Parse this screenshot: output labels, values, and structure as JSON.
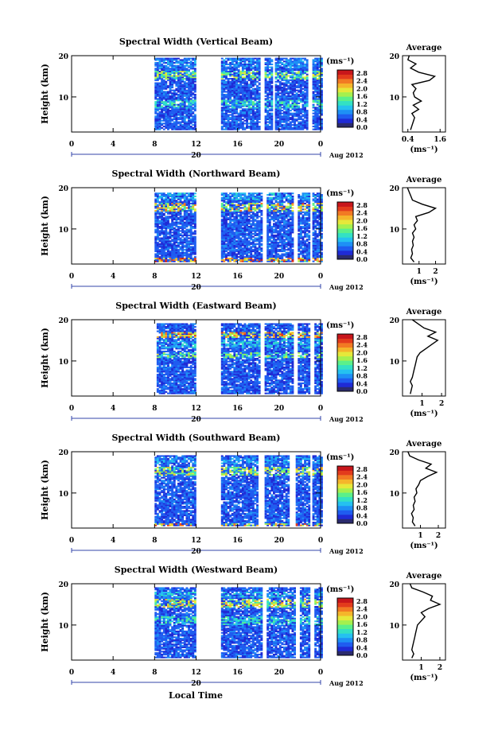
{
  "figure": {
    "xlabel": "Local Time",
    "date_label": "Aug 2012",
    "day_label": "20",
    "colorbar_unit": "(ms⁻¹)",
    "profile_title": "Average",
    "ylabel": "Height (km)"
  },
  "colormap": [
    "#2b2b6e",
    "#1f2bd6",
    "#1f5cf0",
    "#1e90f5",
    "#25c1f0",
    "#33e1c4",
    "#5bf08a",
    "#a6f04e",
    "#e6e83a",
    "#f5b52b",
    "#f27a23",
    "#e33b1c",
    "#c8161b"
  ],
  "chart_data": [
    {
      "type": "heatmap",
      "title": "Spectral Width (Vertical Beam)",
      "xlabel": "Local Time",
      "ylabel": "Height (km)",
      "x_ticks": [
        "0",
        "4",
        "8",
        "12",
        "16",
        "20",
        "0"
      ],
      "x_range": [
        0,
        24
      ],
      "y_ticks": [
        "20",
        "10"
      ],
      "y_range": [
        1.5,
        20
      ],
      "colorbar_ticks": [
        "2.8",
        "2.4",
        "2.0",
        "1.6",
        "1.2",
        "0.8",
        "0.4",
        "0.0"
      ],
      "data_gaps_hours": [
        [
          0,
          8
        ],
        [
          12,
          14.3
        ],
        [
          18.2,
          18.6
        ],
        [
          19.3,
          19.6
        ],
        [
          22.8,
          23.1
        ]
      ],
      "bands": [
        {
          "h": [
            14,
            16
          ],
          "v": 1.7
        },
        {
          "h": [
            7,
            9
          ],
          "v": 1.3
        },
        {
          "h": [
            17,
            19
          ],
          "v": 0.9
        }
      ],
      "top_km": 19.5,
      "profile": {
        "xlabel": "(ms⁻¹)",
        "x_ticks": [
          "0.4",
          "1.6"
        ],
        "x_range": [
          0.2,
          1.8
        ],
        "y_ticks": [
          "20",
          "10"
        ],
        "heights": [
          2,
          3,
          4,
          5,
          6,
          7,
          8,
          9,
          10,
          11,
          12,
          13,
          14,
          15,
          16,
          17,
          18,
          19,
          20
        ],
        "values": [
          0.5,
          0.55,
          0.6,
          0.65,
          0.55,
          0.8,
          0.6,
          0.9,
          0.65,
          0.6,
          0.7,
          0.55,
          1.2,
          1.4,
          0.8,
          0.5,
          0.7,
          0.4,
          0.45
        ]
      }
    },
    {
      "type": "heatmap",
      "title": "Spectral Width (Northward Beam)",
      "xlabel": "Local Time",
      "ylabel": "Height (km)",
      "x_ticks": [
        "0",
        "4",
        "8",
        "12",
        "16",
        "20",
        "0"
      ],
      "x_range": [
        0,
        24
      ],
      "y_ticks": [
        "20",
        "10"
      ],
      "y_range": [
        1.5,
        20
      ],
      "colorbar_ticks": [
        "2.8",
        "2.4",
        "2.0",
        "1.6",
        "1.2",
        "0.8",
        "0.4",
        "0.0"
      ],
      "data_gaps_hours": [
        [
          0,
          8
        ],
        [
          12,
          14.4
        ],
        [
          18.4,
          18.8
        ],
        [
          21.3,
          21.7
        ],
        [
          23.0,
          23.2
        ]
      ],
      "bands": [
        {
          "h": [
            14,
            16
          ],
          "v": 2.2
        },
        {
          "h": [
            2,
            3
          ],
          "v": 2.6
        },
        {
          "h": [
            17,
            18.5
          ],
          "v": 1.0
        }
      ],
      "top_km": 18.5,
      "profile": {
        "xlabel": "(ms⁻¹)",
        "x_ticks": [
          "1",
          "2"
        ],
        "x_range": [
          0,
          2.6
        ],
        "y_ticks": [
          "20",
          "10"
        ],
        "heights": [
          2,
          3,
          4,
          5,
          6,
          7,
          8,
          9,
          10,
          11,
          12,
          13,
          14,
          15,
          16,
          17,
          18,
          19,
          20
        ],
        "values": [
          0.7,
          0.5,
          0.6,
          0.55,
          0.65,
          0.6,
          0.7,
          0.6,
          0.8,
          0.7,
          0.9,
          0.8,
          1.6,
          2.0,
          1.2,
          0.6,
          0.5,
          0.4,
          0.3
        ]
      }
    },
    {
      "type": "heatmap",
      "title": "Spectral Width (Eastward Beam)",
      "xlabel": "Local Time",
      "ylabel": "Height (km)",
      "x_ticks": [
        "0",
        "4",
        "8",
        "12",
        "16",
        "20",
        "0"
      ],
      "x_range": [
        0,
        24
      ],
      "y_ticks": [
        "20",
        "10"
      ],
      "y_range": [
        1.5,
        20
      ],
      "colorbar_ticks": [
        "2.8",
        "2.4",
        "2.0",
        "1.6",
        "1.2",
        "0.8",
        "0.4",
        "0.0"
      ],
      "data_gaps_hours": [
        [
          0,
          8.3
        ],
        [
          12,
          14.3
        ],
        [
          18.2,
          18.6
        ],
        [
          21.4,
          21.8
        ],
        [
          23.0,
          23.3
        ]
      ],
      "bands": [
        {
          "h": [
            15.5,
            17
          ],
          "v": 2.4
        },
        {
          "h": [
            10.5,
            12
          ],
          "v": 1.6
        },
        {
          "h": [
            13,
            15
          ],
          "v": 1.1
        }
      ],
      "top_km": 19,
      "profile": {
        "xlabel": "(ms⁻¹)",
        "x_ticks": [
          "1",
          "2"
        ],
        "x_range": [
          0,
          2.2
        ],
        "y_ticks": [
          "20",
          "10"
        ],
        "heights": [
          2,
          3,
          4,
          5,
          6,
          7,
          8,
          9,
          10,
          11,
          12,
          13,
          14,
          15,
          16,
          17,
          18,
          19,
          20
        ],
        "values": [
          0.4,
          0.45,
          0.5,
          0.4,
          0.5,
          0.55,
          0.6,
          0.65,
          0.7,
          0.75,
          0.9,
          1.2,
          1.5,
          1.8,
          1.3,
          1.7,
          1.1,
          0.8,
          0.5
        ]
      }
    },
    {
      "type": "heatmap",
      "title": "Spectral Width (Southward Beam)",
      "xlabel": "Local Time",
      "ylabel": "Height (km)",
      "x_ticks": [
        "0",
        "4",
        "8",
        "12",
        "16",
        "20",
        "0"
      ],
      "x_range": [
        0,
        24
      ],
      "y_ticks": [
        "20",
        "10"
      ],
      "y_range": [
        1.5,
        20
      ],
      "colorbar_ticks": [
        "2.8",
        "2.4",
        "2.0",
        "1.6",
        "1.2",
        "0.8",
        "0.4",
        "0.0"
      ],
      "data_gaps_hours": [
        [
          0,
          8
        ],
        [
          12,
          14.3
        ],
        [
          18.0,
          18.5
        ],
        [
          21.0,
          21.5
        ],
        [
          23.0,
          23.2
        ]
      ],
      "bands": [
        {
          "h": [
            14,
            16
          ],
          "v": 1.9
        },
        {
          "h": [
            1.5,
            2.5
          ],
          "v": 2.3
        },
        {
          "h": [
            17,
            18.5
          ],
          "v": 0.9
        }
      ],
      "top_km": 19,
      "profile": {
        "xlabel": "(ms⁻¹)",
        "x_ticks": [
          "1",
          "2"
        ],
        "x_range": [
          0,
          2.4
        ],
        "y_ticks": [
          "20",
          "10"
        ],
        "heights": [
          2,
          3,
          4,
          5,
          6,
          7,
          8,
          9,
          10,
          11,
          12,
          13,
          14,
          15,
          16,
          17,
          18,
          19,
          20
        ],
        "values": [
          0.7,
          0.55,
          0.6,
          0.5,
          0.65,
          0.6,
          0.7,
          0.65,
          0.8,
          0.75,
          0.9,
          1.0,
          1.4,
          1.9,
          1.3,
          1.6,
          0.9,
          0.4,
          0.3
        ]
      }
    },
    {
      "type": "heatmap",
      "title": "Spectral Width (Westward Beam)",
      "xlabel": "Local Time",
      "ylabel": "Height (km)",
      "x_ticks": [
        "0",
        "4",
        "8",
        "12",
        "16",
        "20",
        "0"
      ],
      "x_range": [
        0,
        24
      ],
      "y_ticks": [
        "20",
        "10"
      ],
      "y_range": [
        1.5,
        20
      ],
      "colorbar_ticks": [
        "2.8",
        "2.4",
        "2.0",
        "1.6",
        "1.2",
        "0.8",
        "0.4",
        "0.0"
      ],
      "data_gaps_hours": [
        [
          0,
          8
        ],
        [
          12,
          14.4
        ],
        [
          18.3,
          18.7
        ],
        [
          21.5,
          21.9
        ],
        [
          23.0,
          23.3
        ]
      ],
      "bands": [
        {
          "h": [
            14,
            16
          ],
          "v": 2.0
        },
        {
          "h": [
            10,
            12
          ],
          "v": 1.3
        },
        {
          "h": [
            16.5,
            18
          ],
          "v": 1.1
        }
      ],
      "top_km": 19,
      "profile": {
        "xlabel": "(ms⁻¹)",
        "x_ticks": [
          "1",
          "2"
        ],
        "x_range": [
          0,
          2.3
        ],
        "y_ticks": [
          "20",
          "10"
        ],
        "heights": [
          2,
          3,
          4,
          5,
          6,
          7,
          8,
          9,
          10,
          11,
          12,
          13,
          14,
          15,
          16,
          17,
          18,
          19,
          20
        ],
        "values": [
          0.5,
          0.6,
          0.5,
          0.55,
          0.6,
          0.65,
          0.7,
          0.75,
          0.8,
          1.0,
          1.2,
          1.0,
          1.4,
          2.0,
          1.5,
          1.6,
          1.1,
          0.5,
          0.4
        ]
      }
    }
  ]
}
